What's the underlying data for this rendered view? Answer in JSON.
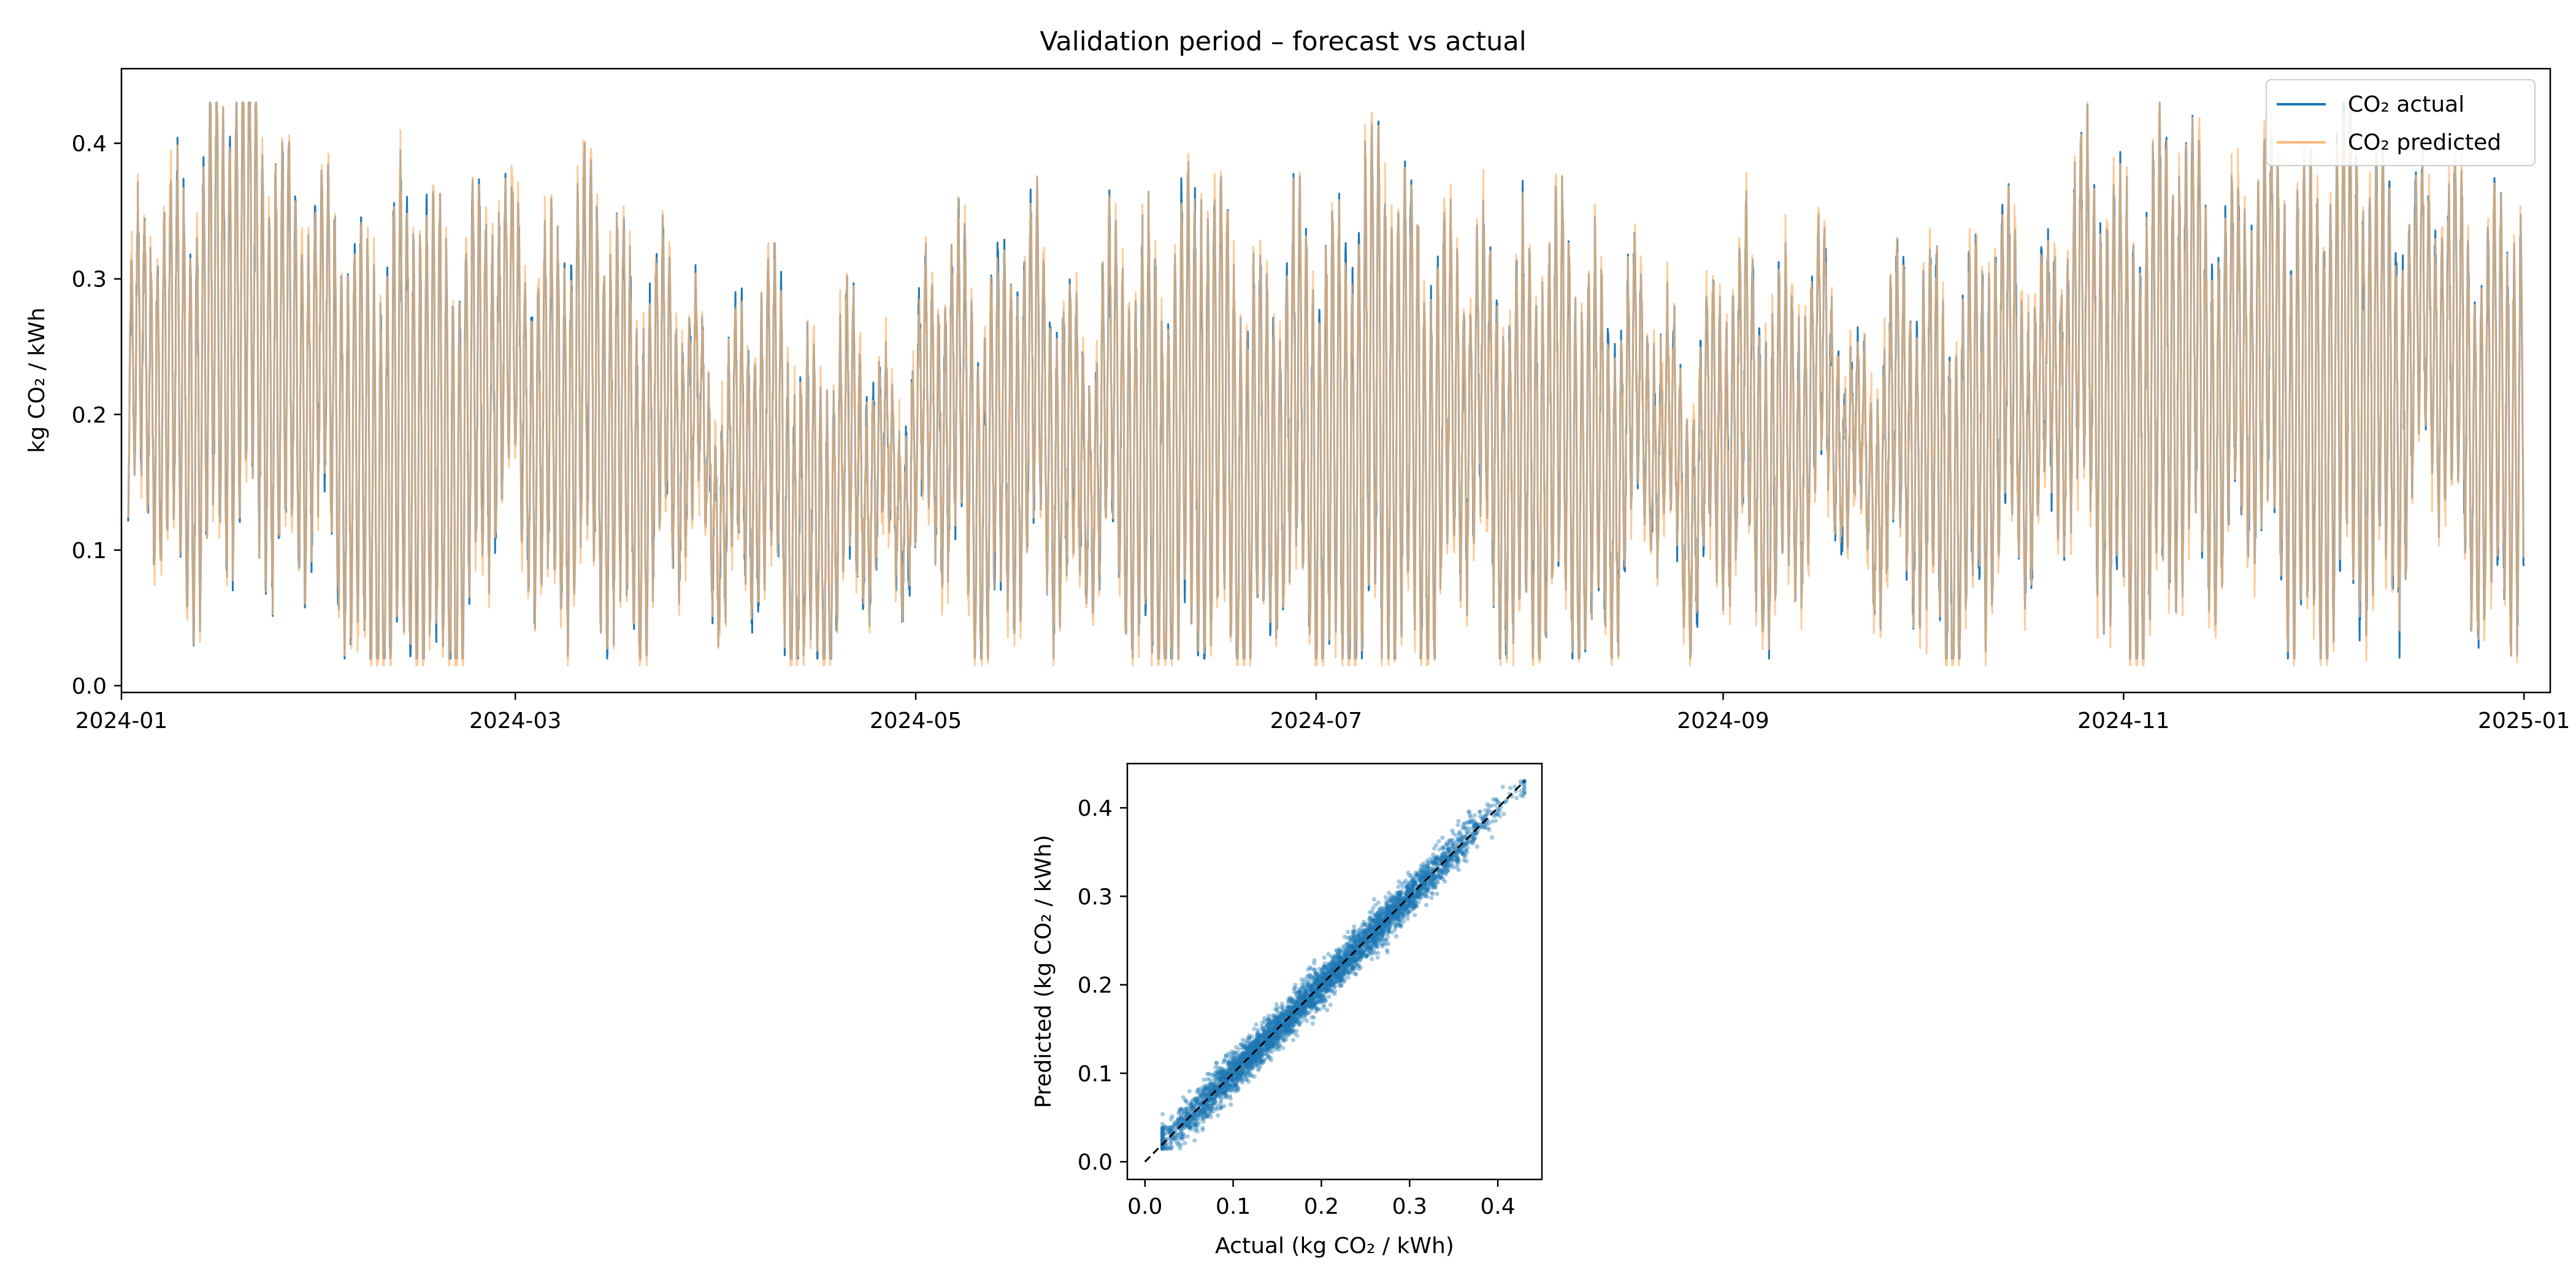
{
  "chart_data": [
    {
      "type": "line",
      "title": "Validation period – forecast vs actual",
      "xlabel": "",
      "ylabel": "kg CO₂ / kWh",
      "x_range": [
        "2024-01-01",
        "2025-01-05"
      ],
      "xticks": [
        "2024-01",
        "2024-03",
        "2024-05",
        "2024-07",
        "2024-09",
        "2024-11",
        "2025-01"
      ],
      "ylim": [
        -0.005,
        0.455
      ],
      "yticks": [
        "0.0",
        "0.1",
        "0.2",
        "0.3",
        "0.4"
      ],
      "grid": false,
      "legend_position": "upper right",
      "series": [
        {
          "name": "CO₂ actual",
          "color": "#1f77b4"
        },
        {
          "name": "CO₂ predicted",
          "color": "#ffb97a"
        }
      ],
      "data_range": {
        "start": "2024-01-02",
        "end": "2024-12-31",
        "min": 0.02,
        "max": 0.43
      },
      "weekly_means": [
        0.2,
        0.22,
        0.26,
        0.27,
        0.22,
        0.18,
        0.16,
        0.18,
        0.23,
        0.21,
        0.2,
        0.19,
        0.18,
        0.17,
        0.16,
        0.13,
        0.15,
        0.18,
        0.19,
        0.18,
        0.19,
        0.18,
        0.17,
        0.18,
        0.18,
        0.17,
        0.18,
        0.19,
        0.2,
        0.19,
        0.19,
        0.17,
        0.18,
        0.18,
        0.17,
        0.18,
        0.19,
        0.2,
        0.18,
        0.17,
        0.17,
        0.2,
        0.24,
        0.22,
        0.2,
        0.24,
        0.23,
        0.22,
        0.21,
        0.23,
        0.25,
        0.22,
        0.19
      ]
    },
    {
      "type": "scatter",
      "title": "",
      "xlabel": "Actual  (kg CO₂ / kWh)",
      "ylabel": "Predicted  (kg CO₂ / kWh)",
      "xlim": [
        -0.02,
        0.45
      ],
      "ylim": [
        -0.02,
        0.45
      ],
      "xticks": [
        "0.0",
        "0.1",
        "0.2",
        "0.3",
        "0.4"
      ],
      "yticks": [
        "0.0",
        "0.1",
        "0.2",
        "0.3",
        "0.4"
      ],
      "point_color": "#1f77b4",
      "reference_line": {
        "from": [
          0.0,
          0.0
        ],
        "to": [
          0.43,
          0.43
        ],
        "style": "dashed",
        "color": "#000000"
      },
      "data_range": {
        "min": 0.02,
        "max": 0.43
      }
    }
  ]
}
